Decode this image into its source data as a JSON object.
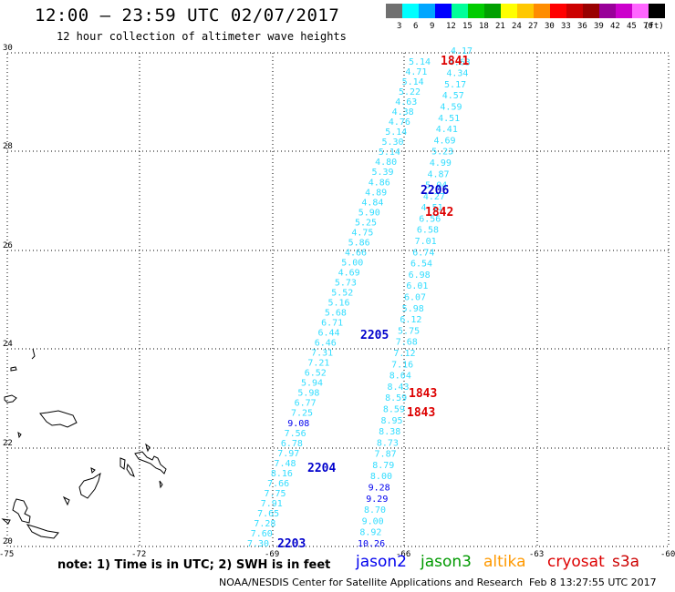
{
  "header": {
    "title": "12:00 — 23:59 UTC 02/07/2017",
    "subtitle": "12 hour collection of altimeter wave heights"
  },
  "legend": {
    "colors": [
      "#707070",
      "#00ffff",
      "#00a6ff",
      "#0000ff",
      "#00ff99",
      "#00cc00",
      "#00a000",
      "#ffff00",
      "#ffc800",
      "#ff8c00",
      "#ff0000",
      "#cc0000",
      "#990000",
      "#990099",
      "#cc00cc",
      "#ff66ff",
      "#000000"
    ],
    "labels": [
      "3",
      "6",
      "9",
      "12",
      "15",
      "18",
      "21",
      "24",
      "27",
      "30",
      "33",
      "36",
      "39",
      "42",
      "45",
      "70"
    ],
    "unit": "(ft)"
  },
  "axes": {
    "y_labels": [
      "30",
      "28",
      "26",
      "24",
      "22",
      "20"
    ],
    "x_labels": [
      "-75",
      "-72",
      "-69",
      "-66",
      "-63",
      "-60"
    ]
  },
  "tracks": {
    "left": [
      {
        "v": "5.14",
        "c": "#33ddff"
      },
      {
        "v": "4.71",
        "c": "#33ddff"
      },
      {
        "v": "5.14",
        "c": "#33ddff"
      },
      {
        "v": "5.22",
        "c": "#33ddff"
      },
      {
        "v": "4.63",
        "c": "#33ddff"
      },
      {
        "v": "4.38",
        "c": "#33ddff"
      },
      {
        "v": "4.76",
        "c": "#33ddff"
      },
      {
        "v": "5.14",
        "c": "#33ddff"
      },
      {
        "v": "5.30",
        "c": "#33ddff"
      },
      {
        "v": "5.14",
        "c": "#33ddff"
      },
      {
        "v": "4.80",
        "c": "#33ddff"
      },
      {
        "v": "5.39",
        "c": "#33ddff"
      },
      {
        "v": "4.86",
        "c": "#33ddff"
      },
      {
        "v": "4.89",
        "c": "#33ddff"
      },
      {
        "v": "4.84",
        "c": "#33ddff"
      },
      {
        "v": "5.90",
        "c": "#33ddff"
      },
      {
        "v": "5.25",
        "c": "#33ddff"
      },
      {
        "v": "4.75",
        "c": "#33ddff"
      },
      {
        "v": "5.86",
        "c": "#33ddff"
      },
      {
        "v": "4.66",
        "c": "#33ddff"
      },
      {
        "v": "5.00",
        "c": "#33ddff"
      },
      {
        "v": "4.69",
        "c": "#33ddff"
      },
      {
        "v": "5.73",
        "c": "#33ddff"
      },
      {
        "v": "5.52",
        "c": "#33ddff"
      },
      {
        "v": "5.16",
        "c": "#33ddff"
      },
      {
        "v": "5.68",
        "c": "#33ddff"
      },
      {
        "v": "6.71",
        "c": "#33ddff"
      },
      {
        "v": "6.44",
        "c": "#33ddff"
      },
      {
        "v": "6.46",
        "c": "#33ddff"
      },
      {
        "v": "7.31",
        "c": "#33ddff"
      },
      {
        "v": "7.21",
        "c": "#33ddff"
      },
      {
        "v": "6.52",
        "c": "#33ddff"
      },
      {
        "v": "5.94",
        "c": "#33ddff"
      },
      {
        "v": "5.98",
        "c": "#33ddff"
      },
      {
        "v": "6.77",
        "c": "#33ddff"
      },
      {
        "v": "7.25",
        "c": "#33ddff"
      },
      {
        "v": "9.08",
        "c": "#0000ee"
      },
      {
        "v": "7.56",
        "c": "#33ddff"
      },
      {
        "v": "6.78",
        "c": "#33ddff"
      },
      {
        "v": "7.97",
        "c": "#33ddff"
      },
      {
        "v": "7.48",
        "c": "#33ddff"
      },
      {
        "v": "8.16",
        "c": "#33ddff"
      },
      {
        "v": "7.66",
        "c": "#33ddff"
      },
      {
        "v": "7.75",
        "c": "#33ddff"
      },
      {
        "v": "7.91",
        "c": "#33ddff"
      },
      {
        "v": "7.65",
        "c": "#33ddff"
      },
      {
        "v": "7.28",
        "c": "#33ddff"
      },
      {
        "v": "7.60",
        "c": "#33ddff"
      },
      {
        "v": "7.30",
        "c": "#33ddff"
      }
    ],
    "right": [
      {
        "v": "4.17",
        "c": "#33ddff"
      },
      {
        "v": "4.63",
        "c": "#33ddff"
      },
      {
        "v": "4.34",
        "c": "#33ddff"
      },
      {
        "v": "5.17",
        "c": "#33ddff"
      },
      {
        "v": "4.57",
        "c": "#33ddff"
      },
      {
        "v": "4.59",
        "c": "#33ddff"
      },
      {
        "v": "4.51",
        "c": "#33ddff"
      },
      {
        "v": "4.41",
        "c": "#33ddff"
      },
      {
        "v": "4.69",
        "c": "#33ddff"
      },
      {
        "v": "5.23",
        "c": "#33ddff"
      },
      {
        "v": "4.99",
        "c": "#33ddff"
      },
      {
        "v": "4.87",
        "c": "#33ddff"
      },
      {
        "v": "5.04",
        "c": "#33ddff"
      },
      {
        "v": "4.27",
        "c": "#33ddff"
      },
      {
        "v": "4.51",
        "c": "#33ddff"
      },
      {
        "v": "6.56",
        "c": "#33ddff"
      },
      {
        "v": "6.58",
        "c": "#33ddff"
      },
      {
        "v": "7.01",
        "c": "#33ddff"
      },
      {
        "v": "6.74",
        "c": "#33ddff"
      },
      {
        "v": "6.54",
        "c": "#33ddff"
      },
      {
        "v": "6.98",
        "c": "#33ddff"
      },
      {
        "v": "6.01",
        "c": "#33ddff"
      },
      {
        "v": "6.07",
        "c": "#33ddff"
      },
      {
        "v": "5.98",
        "c": "#33ddff"
      },
      {
        "v": "6.12",
        "c": "#33ddff"
      },
      {
        "v": "5.75",
        "c": "#33ddff"
      },
      {
        "v": "7.68",
        "c": "#33ddff"
      },
      {
        "v": "7.12",
        "c": "#33ddff"
      },
      {
        "v": "7.16",
        "c": "#33ddff"
      },
      {
        "v": "8.64",
        "c": "#33ddff"
      },
      {
        "v": "8.43",
        "c": "#33ddff"
      },
      {
        "v": "8.59",
        "c": "#33ddff"
      },
      {
        "v": "8.59",
        "c": "#33ddff"
      },
      {
        "v": "8.95",
        "c": "#33ddff"
      },
      {
        "v": "8.38",
        "c": "#33ddff"
      },
      {
        "v": "8.73",
        "c": "#33ddff"
      },
      {
        "v": "7.87",
        "c": "#33ddff"
      },
      {
        "v": "8.79",
        "c": "#33ddff"
      },
      {
        "v": "8.00",
        "c": "#33ddff"
      },
      {
        "v": "9.28",
        "c": "#0000ee"
      },
      {
        "v": "9.29",
        "c": "#0000ee"
      },
      {
        "v": "8.70",
        "c": "#33ddff"
      },
      {
        "v": "9.00",
        "c": "#33ddff"
      },
      {
        "v": "8.92",
        "c": "#33ddff"
      },
      {
        "v": "10.26",
        "c": "#0000ee"
      }
    ]
  },
  "time_labels": [
    {
      "t": "1841",
      "c": "#dd0000"
    },
    {
      "t": "2206",
      "c": "#0000cc"
    },
    {
      "t": "1842",
      "c": "#dd0000"
    },
    {
      "t": "2205",
      "c": "#0000cc"
    },
    {
      "t": "1843",
      "c": "#dd0000"
    },
    {
      "t": "1843",
      "c": "#dd0000"
    },
    {
      "t": "2204",
      "c": "#0000cc"
    },
    {
      "t": "2203",
      "c": "#0000cc"
    }
  ],
  "note": "note: 1) Time is in UTC; 2) SWH is in feet",
  "satellites": [
    {
      "name": "jason2",
      "color": "#0000ee"
    },
    {
      "name": "jason3",
      "color": "#009900"
    },
    {
      "name": "altika",
      "color": "#ff9900"
    },
    {
      "name": "cryosat",
      "color": "#dd0000"
    },
    {
      "name": "s3a",
      "color": "#cc0000"
    }
  ],
  "footer": {
    "left": "NOAA/NESDIS Center for Satellite Applications and Research",
    "right": "Feb  8 13:27:55 UTC 2017"
  }
}
